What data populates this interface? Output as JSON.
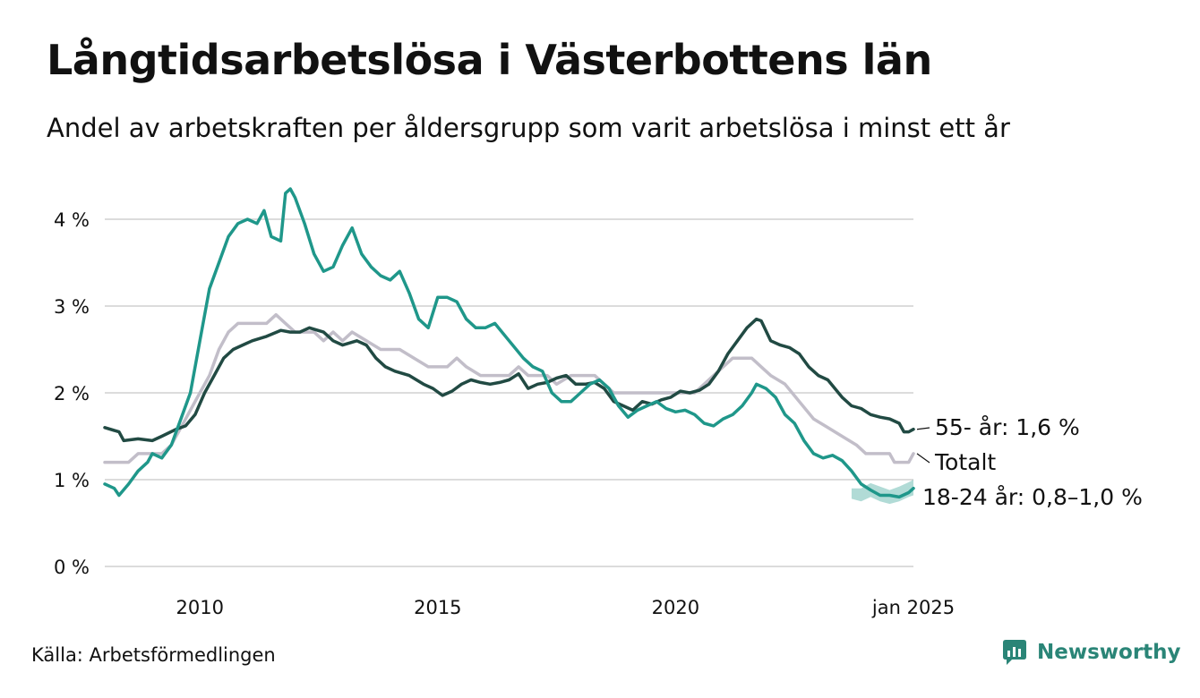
{
  "title": "Långtidsarbetslösa i Västerbottens län",
  "subtitle": "Andel av arbetskraften per åldersgrupp som varit arbetslösa i minst ett år",
  "source": "Källa: Arbetsförmedlingen",
  "brand": "Newsworthy",
  "chart_data": {
    "type": "line",
    "title": "Långtidsarbetslösa i Västerbottens län",
    "ylabel": "",
    "xlabel": "",
    "ylim": [
      0,
      4.5
    ],
    "xlim": [
      2008.0,
      2025.0
    ],
    "grid": true,
    "yticks": [
      {
        "value": 0,
        "label": "0 %"
      },
      {
        "value": 1,
        "label": "1 %"
      },
      {
        "value": 2,
        "label": "2 %"
      },
      {
        "value": 3,
        "label": "3 %"
      },
      {
        "value": 4,
        "label": "4 %"
      }
    ],
    "xticks": [
      {
        "value": 2010.0,
        "label": "2010"
      },
      {
        "value": 2015.0,
        "label": "2015"
      },
      {
        "value": 2020.0,
        "label": "2020"
      },
      {
        "value": 2025.0,
        "label": "jan 2025"
      }
    ],
    "series": [
      {
        "name": "Totalt",
        "label": "Totalt",
        "color": "#c2bec9",
        "points": [
          [
            2008.0,
            1.2
          ],
          [
            2008.5,
            1.2
          ],
          [
            2008.7,
            1.3
          ],
          [
            2009.2,
            1.3
          ],
          [
            2009.4,
            1.4
          ],
          [
            2009.6,
            1.6
          ],
          [
            2009.8,
            1.8
          ],
          [
            2010.0,
            2.0
          ],
          [
            2010.2,
            2.2
          ],
          [
            2010.4,
            2.5
          ],
          [
            2010.6,
            2.7
          ],
          [
            2010.8,
            2.8
          ],
          [
            2011.0,
            2.8
          ],
          [
            2011.2,
            2.8
          ],
          [
            2011.4,
            2.8
          ],
          [
            2011.6,
            2.9
          ],
          [
            2011.8,
            2.8
          ],
          [
            2012.0,
            2.7
          ],
          [
            2012.4,
            2.7
          ],
          [
            2012.6,
            2.6
          ],
          [
            2012.8,
            2.7
          ],
          [
            2013.0,
            2.6
          ],
          [
            2013.2,
            2.7
          ],
          [
            2013.5,
            2.6
          ],
          [
            2013.8,
            2.5
          ],
          [
            2014.2,
            2.5
          ],
          [
            2014.5,
            2.4
          ],
          [
            2014.8,
            2.3
          ],
          [
            2015.2,
            2.3
          ],
          [
            2015.4,
            2.4
          ],
          [
            2015.6,
            2.3
          ],
          [
            2015.9,
            2.2
          ],
          [
            2016.5,
            2.2
          ],
          [
            2016.7,
            2.3
          ],
          [
            2016.9,
            2.2
          ],
          [
            2017.3,
            2.2
          ],
          [
            2017.5,
            2.1
          ],
          [
            2017.8,
            2.2
          ],
          [
            2018.3,
            2.2
          ],
          [
            2018.5,
            2.1
          ],
          [
            2018.7,
            2.0
          ],
          [
            2019.0,
            2.0
          ],
          [
            2019.5,
            2.0
          ],
          [
            2020.0,
            2.0
          ],
          [
            2020.4,
            2.0
          ],
          [
            2020.6,
            2.1
          ],
          [
            2020.8,
            2.2
          ],
          [
            2021.0,
            2.3
          ],
          [
            2021.2,
            2.4
          ],
          [
            2021.6,
            2.4
          ],
          [
            2021.8,
            2.3
          ],
          [
            2022.0,
            2.2
          ],
          [
            2022.3,
            2.1
          ],
          [
            2022.6,
            1.9
          ],
          [
            2022.9,
            1.7
          ],
          [
            2023.2,
            1.6
          ],
          [
            2023.5,
            1.5
          ],
          [
            2023.8,
            1.4
          ],
          [
            2024.0,
            1.3
          ],
          [
            2024.5,
            1.3
          ],
          [
            2024.6,
            1.2
          ],
          [
            2024.9,
            1.2
          ],
          [
            2025.0,
            1.3
          ]
        ]
      },
      {
        "name": "55- år",
        "label": "55- år: 1,6 %",
        "color": "#214a43",
        "points": [
          [
            2008.0,
            1.6
          ],
          [
            2008.3,
            1.55
          ],
          [
            2008.4,
            1.45
          ],
          [
            2008.7,
            1.47
          ],
          [
            2009.0,
            1.45
          ],
          [
            2009.2,
            1.5
          ],
          [
            2009.5,
            1.58
          ],
          [
            2009.7,
            1.62
          ],
          [
            2009.9,
            1.75
          ],
          [
            2010.1,
            2.0
          ],
          [
            2010.3,
            2.2
          ],
          [
            2010.5,
            2.4
          ],
          [
            2010.7,
            2.5
          ],
          [
            2010.9,
            2.55
          ],
          [
            2011.1,
            2.6
          ],
          [
            2011.4,
            2.65
          ],
          [
            2011.7,
            2.72
          ],
          [
            2011.9,
            2.7
          ],
          [
            2012.1,
            2.7
          ],
          [
            2012.3,
            2.75
          ],
          [
            2012.6,
            2.7
          ],
          [
            2012.8,
            2.6
          ],
          [
            2013.0,
            2.55
          ],
          [
            2013.3,
            2.6
          ],
          [
            2013.5,
            2.55
          ],
          [
            2013.7,
            2.4
          ],
          [
            2013.9,
            2.3
          ],
          [
            2014.1,
            2.25
          ],
          [
            2014.4,
            2.2
          ],
          [
            2014.7,
            2.1
          ],
          [
            2014.9,
            2.05
          ],
          [
            2015.1,
            1.97
          ],
          [
            2015.3,
            2.02
          ],
          [
            2015.5,
            2.1
          ],
          [
            2015.7,
            2.15
          ],
          [
            2015.9,
            2.12
          ],
          [
            2016.1,
            2.1
          ],
          [
            2016.3,
            2.12
          ],
          [
            2016.5,
            2.15
          ],
          [
            2016.7,
            2.22
          ],
          [
            2016.9,
            2.05
          ],
          [
            2017.1,
            2.1
          ],
          [
            2017.3,
            2.12
          ],
          [
            2017.5,
            2.17
          ],
          [
            2017.7,
            2.2
          ],
          [
            2017.9,
            2.1
          ],
          [
            2018.1,
            2.1
          ],
          [
            2018.3,
            2.12
          ],
          [
            2018.5,
            2.05
          ],
          [
            2018.7,
            1.9
          ],
          [
            2018.9,
            1.85
          ],
          [
            2019.1,
            1.8
          ],
          [
            2019.3,
            1.9
          ],
          [
            2019.5,
            1.87
          ],
          [
            2019.7,
            1.92
          ],
          [
            2019.9,
            1.95
          ],
          [
            2020.1,
            2.02
          ],
          [
            2020.3,
            2.0
          ],
          [
            2020.5,
            2.03
          ],
          [
            2020.7,
            2.1
          ],
          [
            2020.9,
            2.25
          ],
          [
            2021.1,
            2.45
          ],
          [
            2021.3,
            2.6
          ],
          [
            2021.5,
            2.75
          ],
          [
            2021.7,
            2.85
          ],
          [
            2021.8,
            2.83
          ],
          [
            2022.0,
            2.6
          ],
          [
            2022.2,
            2.55
          ],
          [
            2022.4,
            2.52
          ],
          [
            2022.6,
            2.45
          ],
          [
            2022.8,
            2.3
          ],
          [
            2023.0,
            2.2
          ],
          [
            2023.2,
            2.15
          ],
          [
            2023.5,
            1.95
          ],
          [
            2023.7,
            1.85
          ],
          [
            2023.9,
            1.82
          ],
          [
            2024.1,
            1.75
          ],
          [
            2024.3,
            1.72
          ],
          [
            2024.5,
            1.7
          ],
          [
            2024.7,
            1.65
          ],
          [
            2024.8,
            1.55
          ],
          [
            2024.9,
            1.55
          ],
          [
            2025.0,
            1.58
          ]
        ]
      },
      {
        "name": "18-24 år",
        "label": "18-24 år: 0,8–1,0 %",
        "color": "#1f978a",
        "band": [
          [
            2023.7,
            0.78,
            0.9
          ],
          [
            2023.9,
            0.75,
            0.9
          ],
          [
            2024.1,
            0.8,
            0.96
          ],
          [
            2024.3,
            0.75,
            0.92
          ],
          [
            2024.5,
            0.72,
            0.88
          ],
          [
            2024.7,
            0.75,
            0.92
          ],
          [
            2024.9,
            0.8,
            0.97
          ],
          [
            2025.0,
            0.82,
            1.0
          ]
        ],
        "points": [
          [
            2008.0,
            0.95
          ],
          [
            2008.2,
            0.9
          ],
          [
            2008.3,
            0.82
          ],
          [
            2008.5,
            0.95
          ],
          [
            2008.7,
            1.1
          ],
          [
            2008.9,
            1.2
          ],
          [
            2009.0,
            1.3
          ],
          [
            2009.2,
            1.25
          ],
          [
            2009.4,
            1.4
          ],
          [
            2009.6,
            1.7
          ],
          [
            2009.8,
            2.0
          ],
          [
            2010.0,
            2.6
          ],
          [
            2010.2,
            3.2
          ],
          [
            2010.4,
            3.5
          ],
          [
            2010.6,
            3.8
          ],
          [
            2010.8,
            3.95
          ],
          [
            2011.0,
            4.0
          ],
          [
            2011.2,
            3.95
          ],
          [
            2011.35,
            4.1
          ],
          [
            2011.5,
            3.8
          ],
          [
            2011.7,
            3.75
          ],
          [
            2011.8,
            4.3
          ],
          [
            2011.9,
            4.35
          ],
          [
            2012.0,
            4.25
          ],
          [
            2012.2,
            3.95
          ],
          [
            2012.4,
            3.6
          ],
          [
            2012.6,
            3.4
          ],
          [
            2012.8,
            3.45
          ],
          [
            2013.0,
            3.7
          ],
          [
            2013.2,
            3.9
          ],
          [
            2013.4,
            3.6
          ],
          [
            2013.6,
            3.45
          ],
          [
            2013.8,
            3.35
          ],
          [
            2014.0,
            3.3
          ],
          [
            2014.2,
            3.4
          ],
          [
            2014.4,
            3.15
          ],
          [
            2014.6,
            2.85
          ],
          [
            2014.8,
            2.75
          ],
          [
            2015.0,
            3.1
          ],
          [
            2015.2,
            3.1
          ],
          [
            2015.4,
            3.05
          ],
          [
            2015.6,
            2.85
          ],
          [
            2015.8,
            2.75
          ],
          [
            2016.0,
            2.75
          ],
          [
            2016.2,
            2.8
          ],
          [
            2016.5,
            2.6
          ],
          [
            2016.8,
            2.4
          ],
          [
            2017.0,
            2.3
          ],
          [
            2017.2,
            2.25
          ],
          [
            2017.4,
            2.0
          ],
          [
            2017.6,
            1.9
          ],
          [
            2017.8,
            1.9
          ],
          [
            2018.0,
            2.0
          ],
          [
            2018.2,
            2.1
          ],
          [
            2018.4,
            2.15
          ],
          [
            2018.6,
            2.05
          ],
          [
            2018.8,
            1.85
          ],
          [
            2019.0,
            1.72
          ],
          [
            2019.2,
            1.8
          ],
          [
            2019.4,
            1.85
          ],
          [
            2019.6,
            1.9
          ],
          [
            2019.8,
            1.82
          ],
          [
            2020.0,
            1.78
          ],
          [
            2020.2,
            1.8
          ],
          [
            2020.4,
            1.75
          ],
          [
            2020.6,
            1.65
          ],
          [
            2020.8,
            1.62
          ],
          [
            2021.0,
            1.7
          ],
          [
            2021.2,
            1.75
          ],
          [
            2021.4,
            1.85
          ],
          [
            2021.6,
            2.0
          ],
          [
            2021.7,
            2.1
          ],
          [
            2021.9,
            2.05
          ],
          [
            2022.1,
            1.95
          ],
          [
            2022.3,
            1.75
          ],
          [
            2022.5,
            1.65
          ],
          [
            2022.7,
            1.45
          ],
          [
            2022.9,
            1.3
          ],
          [
            2023.1,
            1.25
          ],
          [
            2023.3,
            1.28
          ],
          [
            2023.5,
            1.22
          ],
          [
            2023.7,
            1.1
          ],
          [
            2023.9,
            0.95
          ],
          [
            2024.1,
            0.88
          ],
          [
            2024.3,
            0.82
          ],
          [
            2024.5,
            0.82
          ],
          [
            2024.7,
            0.8
          ],
          [
            2024.9,
            0.85
          ],
          [
            2025.0,
            0.9
          ]
        ]
      }
    ]
  }
}
